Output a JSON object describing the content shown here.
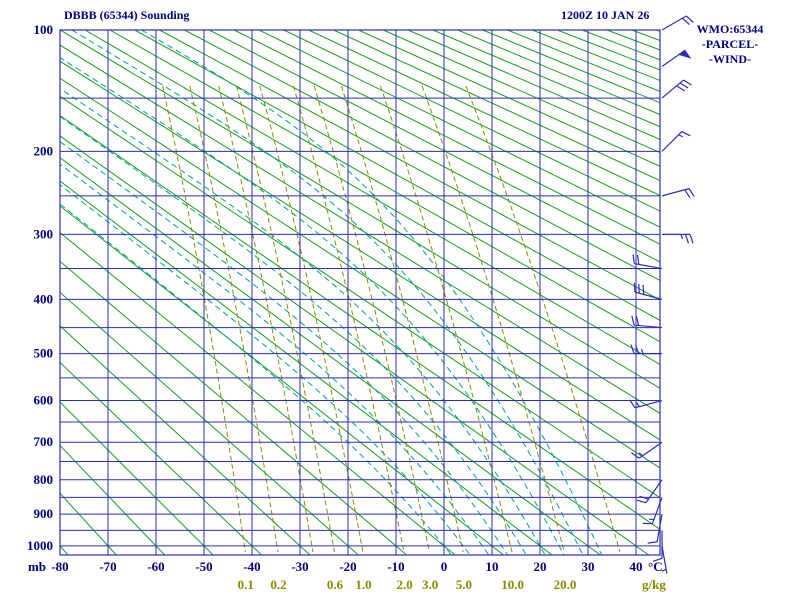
{
  "header": {
    "title": "DBBB (65344) Sounding",
    "datetime": "1200Z 10 JAN 26"
  },
  "legend": {
    "station": "WMO:65344",
    "parcel": "-PARCEL-",
    "wind": "-WIND-"
  },
  "colors": {
    "text": "#000080",
    "grid": "#2d2db8",
    "dry_adiabat": "#18a018",
    "moist_adiabat": "#00a0a0",
    "mixing_ratio": "#8b8b00",
    "wind": "#2d2db8"
  },
  "chart_data": {
    "type": "stuve-sounding",
    "title": "DBBB (65344) Sounding",
    "station": "DBBB",
    "wmo_id": "65344",
    "valid": "1200Z 10 JAN 26",
    "pressure_axis": {
      "label": "mb",
      "scale": "stuve(p^0.286)",
      "range": [
        100,
        1030
      ],
      "ticks": [
        100,
        200,
        300,
        400,
        500,
        600,
        700,
        800,
        900,
        1000
      ],
      "minor_step": 50
    },
    "temp_axis": {
      "label": "°C",
      "range": [
        -80,
        45
      ],
      "ticks": [
        -80,
        -70,
        -60,
        -50,
        -40,
        -30,
        -20,
        -10,
        0,
        10,
        20,
        30,
        40
      ]
    },
    "dry_adiabats": {
      "theta_start": -80,
      "theta_end": 340,
      "step": 10
    },
    "moist_adiabats": {
      "theta_w": [
        0,
        4,
        8,
        12,
        16,
        20,
        24,
        28,
        32
      ]
    },
    "mixing_ratio": {
      "label": "g/kg",
      "lines": [
        {
          "w": 0.1,
          "label": "0.1"
        },
        {
          "w": 0.2,
          "label": "0.2"
        },
        {
          "w": 0.4,
          "label": ""
        },
        {
          "w": 0.6,
          "label": "0.6"
        },
        {
          "w": 1.0,
          "label": "1.0"
        },
        {
          "w": 2.0,
          "label": "2.0"
        },
        {
          "w": 3.0,
          "label": "3.0"
        },
        {
          "w": 5.0,
          "label": "5.0"
        },
        {
          "w": 10.0,
          "label": "10.0"
        },
        {
          "w": 20.0,
          "label": "20.0"
        },
        {
          "w": 40.0,
          "label": ""
        }
      ]
    },
    "winds": [
      {
        "p": 100,
        "dir": 60,
        "spd": 20
      },
      {
        "p": 125,
        "dir": 55,
        "spd": 50
      },
      {
        "p": 150,
        "dir": 50,
        "spd": 30
      },
      {
        "p": 200,
        "dir": 45,
        "spd": 15
      },
      {
        "p": 250,
        "dir": 75,
        "spd": 20
      },
      {
        "p": 300,
        "dir": 90,
        "spd": 25
      },
      {
        "p": 350,
        "dir": 280,
        "spd": 20
      },
      {
        "p": 400,
        "dir": 285,
        "spd": 30
      },
      {
        "p": 450,
        "dir": 275,
        "spd": 20
      },
      {
        "p": 500,
        "dir": 270,
        "spd": 25
      },
      {
        "p": 600,
        "dir": 255,
        "spd": 15
      },
      {
        "p": 700,
        "dir": 235,
        "spd": 15
      },
      {
        "p": 800,
        "dir": 215,
        "spd": 20
      },
      {
        "p": 850,
        "dir": 200,
        "spd": 15
      },
      {
        "p": 900,
        "dir": 190,
        "spd": 10
      },
      {
        "p": 950,
        "dir": 180,
        "spd": 10
      },
      {
        "p": 1000,
        "dir": 170,
        "spd": 5
      }
    ]
  }
}
